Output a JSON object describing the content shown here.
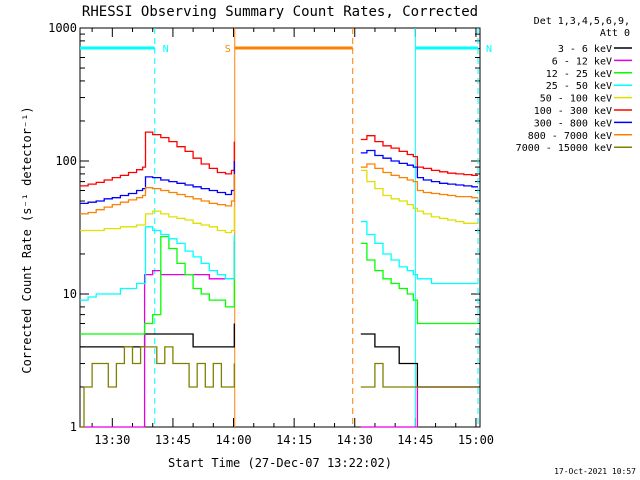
{
  "chart_data": {
    "type": "line",
    "title": "RHESSI Observing Summary Count Rates, Corrected",
    "xlabel": "Start Time (27-Dec-07 13:22:02)",
    "ylabel": "Corrected Count Rate (s⁻¹ detector⁻¹)",
    "ylog": true,
    "ylim": [
      1,
      1000
    ],
    "xlim_minutes_after_1300": [
      22.0,
      121.0
    ],
    "x_ticks": [
      {
        "min": 30,
        "label": "13:30"
      },
      {
        "min": 45,
        "label": "13:45"
      },
      {
        "min": 60,
        "label": "14:00"
      },
      {
        "min": 75,
        "label": "14:15"
      },
      {
        "min": 90,
        "label": "14:30"
      },
      {
        "min": 105,
        "label": "14:45"
      },
      {
        "min": 120,
        "label": "15:00"
      }
    ],
    "y_ticks": [
      {
        "value": 1,
        "label": "1"
      },
      {
        "value": 10,
        "label": "10"
      },
      {
        "value": 100,
        "label": "100"
      },
      {
        "value": 1000,
        "label": "1000"
      }
    ],
    "legend_header": [
      "Det 1,3,4,5,6,9,",
      "Att 0"
    ],
    "legend_placement": "right",
    "series": [
      {
        "name": "3 - 6 keV",
        "color": "#000000",
        "x": [
          22,
          23,
          25,
          27,
          29,
          31,
          33,
          36,
          38,
          40,
          42,
          44,
          46,
          48,
          50,
          52,
          54,
          56,
          58,
          59.5,
          60.2
        ],
        "y": [
          4,
          4,
          4,
          4,
          4,
          4,
          4,
          4,
          5,
          5,
          5,
          5,
          5,
          5,
          4,
          4,
          4,
          4,
          4,
          4,
          6
        ]
      },
      {
        "name": "6 - 12 keV",
        "color": "#e000e0",
        "x": [
          22,
          25,
          28,
          31,
          34,
          36,
          38,
          40,
          42,
          44,
          46,
          48,
          50,
          52,
          54,
          56,
          58,
          59.5,
          60.2
        ],
        "y": [
          1,
          1,
          1,
          1,
          1,
          1,
          14,
          15,
          14,
          14,
          14,
          14,
          14,
          14,
          13,
          13,
          13,
          13,
          25
        ]
      },
      {
        "name": "12 - 25 keV",
        "color": "#00ff00",
        "x": [
          22,
          24,
          26,
          28,
          30,
          32,
          34,
          36,
          38,
          40,
          42,
          44,
          46,
          48,
          50,
          52,
          54,
          56,
          58,
          59.5,
          60.2
        ],
        "y": [
          5,
          5,
          5,
          5,
          5,
          5,
          5,
          5,
          6,
          7,
          27,
          22,
          17,
          14,
          11,
          10,
          9,
          9,
          8,
          8,
          20
        ]
      },
      {
        "name": "25 - 50 keV",
        "color": "#00ffff",
        "x": [
          22,
          24,
          26,
          28,
          30,
          32,
          34,
          36,
          37.5,
          38.2,
          40,
          42,
          44,
          46,
          48,
          50,
          52,
          54,
          56,
          58,
          59.5,
          60.2
        ],
        "y": [
          9,
          9.5,
          10,
          10,
          10,
          11,
          11,
          12,
          12,
          32,
          30,
          28,
          26,
          24,
          21,
          19,
          17,
          15,
          14,
          13,
          13,
          28
        ]
      },
      {
        "name": "50 - 100 keV",
        "color": "#e0e000",
        "x": [
          22,
          24,
          26,
          28,
          30,
          32,
          34,
          36,
          37.5,
          38.2,
          40,
          42,
          44,
          46,
          48,
          50,
          52,
          54,
          56,
          58,
          59.5,
          60.2
        ],
        "y": [
          30,
          30,
          30,
          31,
          31,
          32,
          32,
          33,
          33,
          40,
          42,
          40,
          38,
          37,
          36,
          34,
          33,
          32,
          30,
          29,
          30,
          45
        ]
      },
      {
        "name": "100 - 300 keV",
        "color": "#ff0000",
        "x": [
          22,
          24,
          26,
          28,
          30,
          32,
          34,
          36,
          37.5,
          38.2,
          40,
          42,
          44,
          46,
          48,
          50,
          52,
          54,
          56,
          58,
          59.5,
          60.2
        ],
        "y": [
          65,
          67,
          69,
          72,
          75,
          78,
          82,
          86,
          90,
          165,
          158,
          150,
          140,
          128,
          118,
          105,
          95,
          88,
          82,
          80,
          85,
          140
        ]
      },
      {
        "name": "300 - 800 keV",
        "color": "#0000ff",
        "x": [
          22,
          24,
          26,
          28,
          30,
          32,
          34,
          36,
          37.5,
          38.2,
          40,
          42,
          44,
          46,
          48,
          50,
          52,
          54,
          56,
          58,
          59.5,
          60.2
        ],
        "y": [
          48,
          49,
          50,
          52,
          53,
          55,
          57,
          60,
          62,
          76,
          75,
          72,
          70,
          68,
          66,
          64,
          62,
          60,
          58,
          56,
          60,
          100
        ]
      },
      {
        "name": "800 - 7000 keV",
        "color": "#ff8000",
        "x": [
          22,
          24,
          26,
          28,
          30,
          32,
          34,
          36,
          37.5,
          38.2,
          40,
          42,
          44,
          46,
          48,
          50,
          52,
          54,
          56,
          58,
          59.5,
          60.2
        ],
        "y": [
          40,
          41,
          43,
          45,
          47,
          49,
          51,
          53,
          55,
          63,
          62,
          60,
          58,
          56,
          54,
          52,
          50,
          48,
          47,
          46,
          50,
          80
        ]
      },
      {
        "name": "7000 - 15000 keV",
        "color": "#808000",
        "x": [
          22,
          23,
          25,
          27,
          29,
          31,
          33,
          35,
          37,
          39,
          41,
          43,
          45,
          47,
          49,
          51,
          53,
          55,
          57,
          59,
          60.2
        ],
        "y": [
          1,
          2,
          3,
          3,
          2,
          3,
          4,
          3,
          4,
          4,
          3,
          4,
          3,
          3,
          2,
          3,
          2,
          3,
          2,
          2,
          3
        ]
      }
    ],
    "second_segment": {
      "x": [
        91.5,
        93,
        95,
        97,
        99,
        101,
        103,
        104.5,
        105.5,
        107,
        109,
        111,
        113,
        115,
        117,
        119,
        120.5
      ],
      "series_y": {
        "3 - 6 keV": [
          5,
          5,
          4,
          4,
          4,
          3,
          3,
          3,
          2,
          2,
          2,
          2,
          2,
          2,
          2,
          2,
          2
        ],
        "6 - 12 keV": [
          1,
          1,
          1,
          1,
          1,
          1,
          1,
          1,
          2,
          2,
          2,
          2,
          2,
          2,
          2,
          2,
          2
        ],
        "12 - 25 keV": [
          24,
          18,
          15,
          13,
          12,
          11,
          10,
          9,
          6,
          6,
          6,
          6,
          6,
          6,
          6,
          6,
          6
        ],
        "25 - 50 keV": [
          35,
          28,
          24,
          20,
          18,
          16,
          15,
          14,
          13,
          13,
          12,
          12,
          12,
          12,
          12,
          12,
          12
        ],
        "50 - 100 keV": [
          85,
          70,
          62,
          55,
          52,
          50,
          47,
          44,
          42,
          40,
          38,
          37,
          36,
          35,
          34,
          34,
          34
        ],
        "100 - 300 keV": [
          145,
          155,
          140,
          130,
          125,
          118,
          112,
          108,
          90,
          88,
          85,
          83,
          81,
          80,
          79,
          78,
          78
        ],
        "300 - 800 keV": [
          115,
          120,
          110,
          105,
          100,
          96,
          93,
          90,
          75,
          72,
          70,
          68,
          67,
          66,
          65,
          64,
          64
        ],
        "800 - 7000 keV": [
          90,
          95,
          88,
          82,
          78,
          75,
          72,
          70,
          60,
          58,
          57,
          56,
          55,
          54,
          54,
          53,
          53
        ],
        "7000 - 15000 keV": [
          2,
          2,
          3,
          2,
          2,
          2,
          2,
          2,
          2,
          2,
          2,
          2,
          2,
          2,
          2,
          2,
          2
        ]
      }
    },
    "intervals": [
      {
        "label": "N",
        "color": "#00ffff",
        "start": 22.0,
        "end": 40.5
      },
      {
        "label": "N",
        "color": "#00ffff",
        "start": 105.0,
        "end": 120.5
      },
      {
        "label": "S",
        "color": "#ff8000",
        "start": 60.3,
        "end": 89.5
      }
    ],
    "vlines": [
      {
        "min": 40.5,
        "color": "#00ffff",
        "style": "dashed"
      },
      {
        "min": 60.3,
        "color": "#ff8000",
        "style": "solid"
      },
      {
        "min": 89.5,
        "color": "#ff8000",
        "style": "dashed"
      },
      {
        "min": 105.0,
        "color": "#00ffff",
        "style": "solid"
      },
      {
        "min": 120.5,
        "color": "#00ffff",
        "style": "dashed"
      }
    ],
    "footer_timestamp": "17-Oct-2021 10:57"
  }
}
